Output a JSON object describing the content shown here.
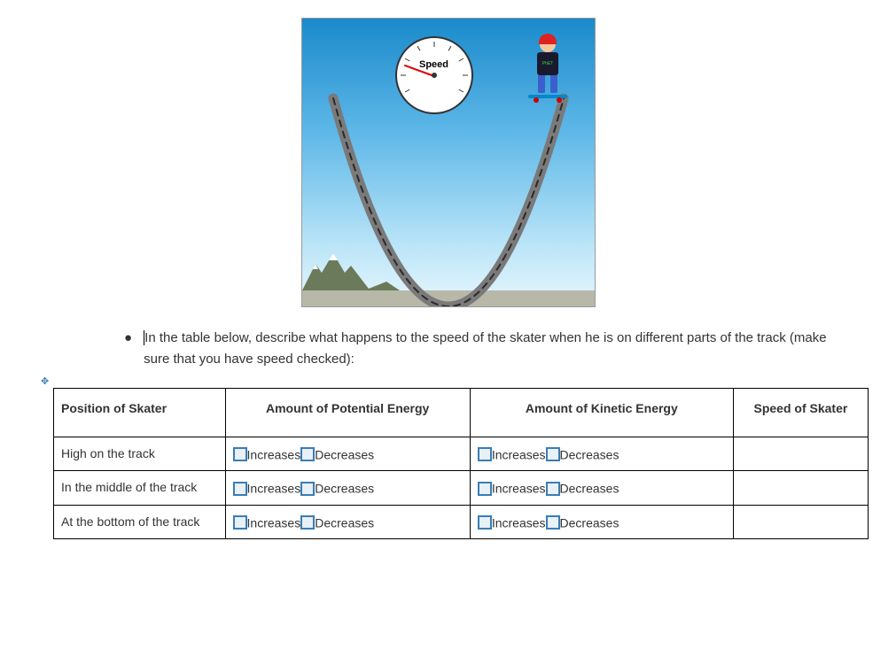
{
  "simulation": {
    "speed_label": "Speed",
    "skater_shirt_text": "PhET",
    "sky_gradient": [
      "#1a8acb",
      "#5fb8e8",
      "#bde6f8",
      "#e8f6fd"
    ],
    "ground_color": "#b8b8a8",
    "track_color": "#7a7a7a",
    "track_dash_color": "#2a2a2a",
    "needle_color": "#d00",
    "helmet_color": "#d22",
    "skin_color": "#f4c89c",
    "shirt_color": "#1a1a2e",
    "pants_color": "#3a5fcd",
    "board_color": "#0088cc",
    "wheel_color": "#c00"
  },
  "instruction": {
    "text": "In the table below, describe what happens to the speed of the skater when he is on different parts of the track (make sure that you have speed checked):"
  },
  "table": {
    "headers": {
      "position": "Position of Skater",
      "pe": "Amount of Potential Energy",
      "ke": "Amount of Kinetic Energy",
      "speed": "Speed of Skater"
    },
    "options": {
      "increases": "Increases",
      "decreases": "Decreases"
    },
    "rows": [
      {
        "position": "High on the track"
      },
      {
        "position": "In the middle of the track"
      },
      {
        "position": "At the bottom of the track"
      }
    ],
    "checkbox_border": "#3a7db5",
    "checkbox_fill": "#e8f0f8"
  }
}
